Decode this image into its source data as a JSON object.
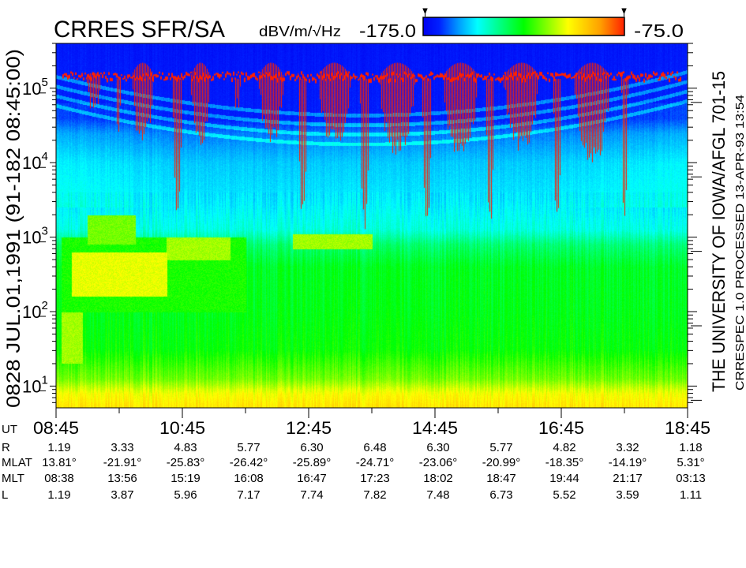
{
  "header": {
    "title": "CRRES SFR/SA",
    "units": "dBV/m/√Hz",
    "scale_min_label": "-175.0",
    "scale_max_label": "-75.0"
  },
  "left_label": "0828   JUL.01,1991   (91-182 08:45:00)",
  "right_label_main": "THE UNIVERSITY OF IOWA/AFGL 701-15",
  "right_label_sub": "CRRESPEC 1.0   PROCESSED 13-APR-93   13:54",
  "ephemeris": {
    "ut_label": "UT",
    "ut_ticks": [
      "08:45",
      "10:45",
      "12:45",
      "14:45",
      "16:45",
      "18:45"
    ],
    "rows": [
      {
        "label": "R",
        "values": [
          "1.19",
          "3.33",
          "4.83",
          "5.77",
          "6.30",
          "6.48",
          "6.30",
          "5.77",
          "4.82",
          "3.32",
          "1.18"
        ]
      },
      {
        "label": "MLAT",
        "values": [
          "13.81°",
          "-21.91°",
          "-25.83°",
          "-26.42°",
          "-25.89°",
          "-24.71°",
          "-23.06°",
          "-20.99°",
          "-18.35°",
          "-14.19°",
          "5.31°"
        ]
      },
      {
        "label": "MLT",
        "values": [
          "08:38",
          "13:56",
          "15:19",
          "16:08",
          "16:47",
          "17:23",
          "18:02",
          "18:47",
          "19:44",
          "21:17",
          "03:13"
        ]
      },
      {
        "label": "L",
        "values": [
          "1.19",
          "3.87",
          "5.96",
          "7.17",
          "7.74",
          "7.82",
          "7.48",
          "6.73",
          "5.52",
          "3.59",
          "1.11"
        ]
      }
    ]
  },
  "chart_data": {
    "type": "heatmap",
    "title": "CRRES SFR/SA",
    "xlabel": "UT",
    "ylabel": "",
    "xlim": [
      "08:45",
      "18:45"
    ],
    "x_minor_tick_interval_hours": 1,
    "ylim": [
      5.1,
      400000
    ],
    "y_scale": "log",
    "y_tick_labels": [
      {
        "base": "10",
        "exp": "1"
      },
      {
        "base": "10",
        "exp": "2"
      },
      {
        "base": "10",
        "exp": "3"
      },
      {
        "base": "10",
        "exp": "4"
      },
      {
        "base": "10",
        "exp": "5"
      }
    ],
    "color_scale": {
      "min": -175.0,
      "max": -75.0,
      "units": "dBV/m/√Hz",
      "stops": [
        [
          0.0,
          "#0000f0"
        ],
        [
          0.08,
          "#0020ff"
        ],
        [
          0.18,
          "#00a0ff"
        ],
        [
          0.27,
          "#00ffff"
        ],
        [
          0.5,
          "#00ff00"
        ],
        [
          0.72,
          "#ffff00"
        ],
        [
          0.88,
          "#ffa000"
        ],
        [
          1.0,
          "#ff2000"
        ]
      ]
    },
    "background_spectrum_log10f_dB": [
      [
        0.7,
        -98
      ],
      [
        0.9,
        -103
      ],
      [
        1.1,
        -115
      ],
      [
        1.5,
        -125
      ],
      [
        2.0,
        -127
      ],
      [
        2.6,
        -128
      ],
      [
        2.9,
        -135
      ],
      [
        3.1,
        -145
      ],
      [
        3.5,
        -150
      ],
      [
        4.0,
        -153
      ],
      [
        4.4,
        -160
      ],
      [
        4.6,
        -168
      ],
      [
        5.6,
        -170
      ]
    ],
    "enhancements": [
      {
        "t_start": "08:50",
        "t_end": "11:45",
        "f_low": 100,
        "f_high": 1000,
        "dB": -120
      },
      {
        "t_start": "09:00",
        "t_end": "10:30",
        "f_low": 160,
        "f_high": 630,
        "dB": -102
      },
      {
        "t_start": "09:15",
        "t_end": "10:00",
        "f_low": 800,
        "f_high": 2000,
        "dB": -112
      },
      {
        "t_start": "10:30",
        "t_end": "11:30",
        "f_low": 500,
        "f_high": 1000,
        "dB": -108
      },
      {
        "t_start": "12:30",
        "t_end": "13:45",
        "f_low": 700,
        "f_high": 1100,
        "dB": -108
      },
      {
        "t_start": "08:50",
        "t_end": "09:10",
        "f_low": 20,
        "f_high": 100,
        "dB": -108
      }
    ],
    "red_trace_level_hz": 150000,
    "red_bursts": [
      {
        "t": "09:20",
        "width_h": 0.25,
        "f_top": 160000,
        "f_bottom": 56000
      },
      {
        "t": "09:44",
        "width_h": 0.08,
        "f_top": 126000,
        "f_bottom": 24500
      },
      {
        "t": "10:07",
        "width_h": 0.35,
        "f_top": 220000,
        "f_bottom": 23400
      },
      {
        "t": "10:40",
        "width_h": 0.14,
        "f_top": 100000,
        "f_bottom": 2450
      },
      {
        "t": "11:02",
        "width_h": 0.3,
        "f_top": 220000,
        "f_bottom": 19000
      },
      {
        "t": "11:37",
        "width_h": 0.1,
        "f_top": 126000,
        "f_bottom": 50000
      },
      {
        "t": "12:09",
        "width_h": 0.38,
        "f_top": 220000,
        "f_bottom": 21400
      },
      {
        "t": "12:39",
        "width_h": 0.14,
        "f_top": 100000,
        "f_bottom": 2240
      },
      {
        "t": "13:09",
        "width_h": 0.5,
        "f_top": 220000,
        "f_bottom": 19000
      },
      {
        "t": "13:38",
        "width_h": 0.14,
        "f_top": 100000,
        "f_bottom": 1480
      },
      {
        "t": "14:09",
        "width_h": 0.55,
        "f_top": 220000,
        "f_bottom": 14800
      },
      {
        "t": "14:37",
        "width_h": 0.14,
        "f_top": 100000,
        "f_bottom": 1480
      },
      {
        "t": "15:09",
        "width_h": 0.55,
        "f_top": 220000,
        "f_bottom": 14800
      },
      {
        "t": "15:37",
        "width_h": 0.12,
        "f_top": 100000,
        "f_bottom": 1700
      },
      {
        "t": "16:07",
        "width_h": 0.55,
        "f_top": 220000,
        "f_bottom": 17000
      },
      {
        "t": "16:41",
        "width_h": 0.12,
        "f_top": 100000,
        "f_bottom": 2040
      },
      {
        "t": "17:14",
        "width_h": 0.55,
        "f_top": 220000,
        "f_bottom": 11700
      },
      {
        "t": "17:45",
        "width_h": 0.1,
        "f_top": 100000,
        "f_bottom": 2240
      }
    ]
  }
}
